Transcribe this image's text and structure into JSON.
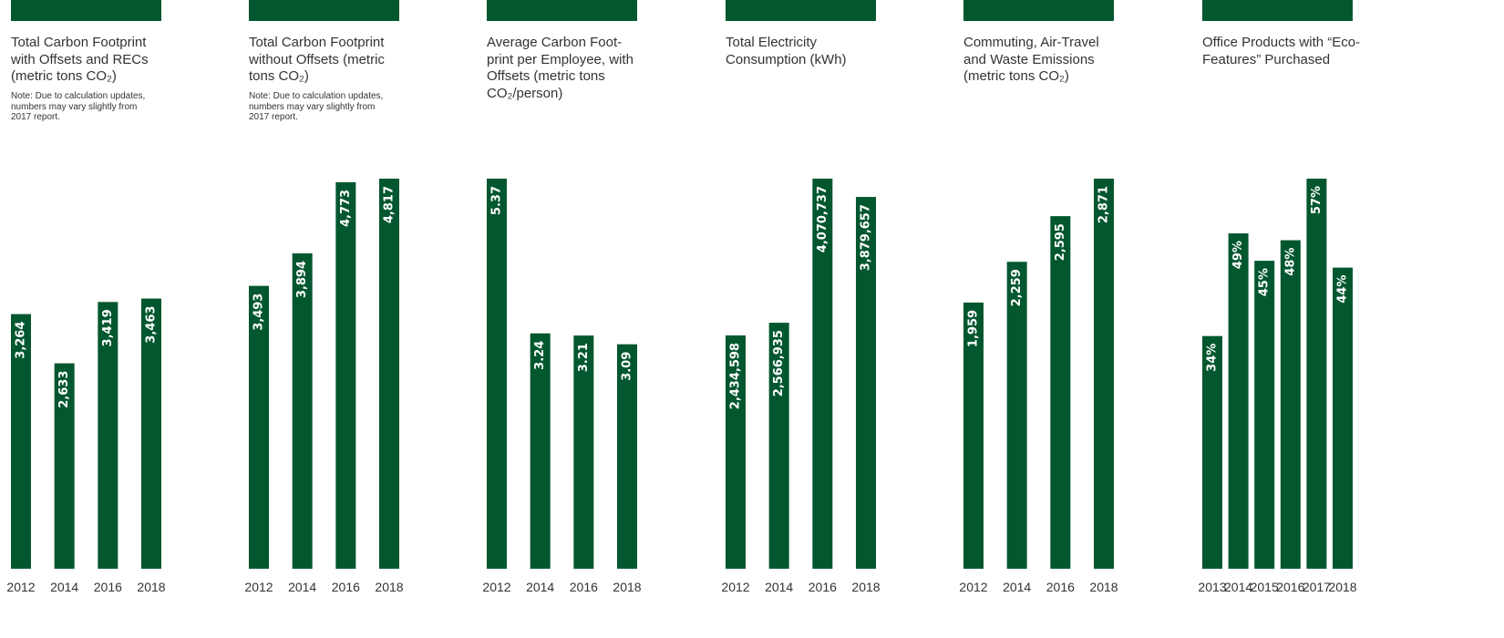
{
  "colors": {
    "bar": "#03572f",
    "label": "#ffffff",
    "text": "#333333"
  },
  "chart_data": [
    {
      "type": "bar",
      "title": "Total Carbon Footprint with Offsets and RECs (metric tons CO₂)",
      "note": "Note: Due to calculation updates, numbers may vary slightly from 2017 report.",
      "categories": [
        "2012",
        "2014",
        "2016",
        "2018"
      ],
      "values": [
        3264,
        2633,
        3419,
        3463
      ],
      "value_labels": [
        "3,264",
        "2,633",
        "3,419",
        "3,463"
      ],
      "ylim": [
        0,
        5000
      ]
    },
    {
      "type": "bar",
      "title": "Total Carbon Footprint without Offsets (metric tons CO₂)",
      "note": "Note: Due to calculation updates, numbers may vary slightly from 2017 report.",
      "categories": [
        "2012",
        "2014",
        "2016",
        "2018"
      ],
      "values": [
        3493,
        3894,
        4773,
        4817
      ],
      "value_labels": [
        "3,493",
        "3,894",
        "4,773",
        "4,817"
      ],
      "ylim": [
        0,
        4817
      ]
    },
    {
      "type": "bar",
      "title": "Average Carbon Foot-print per Employee, with Offsets (metric tons CO₂/person)",
      "note": "",
      "categories": [
        "2012",
        "2014",
        "2016",
        "2018"
      ],
      "values": [
        5.37,
        3.24,
        3.21,
        3.09
      ],
      "value_labels": [
        "5.37",
        "3.24",
        "3.21",
        "3.09"
      ],
      "ylim": [
        0,
        5.37
      ]
    },
    {
      "type": "bar",
      "title": "Total Electricity Consumption (kWh)",
      "note": "",
      "categories": [
        "2012",
        "2014",
        "2016",
        "2018"
      ],
      "values": [
        2434598,
        2566935,
        4070737,
        3879657
      ],
      "value_labels": [
        "2,434,598",
        "2,566,935",
        "4,070,737",
        "3,879,657"
      ],
      "ylim": [
        0,
        4070737
      ]
    },
    {
      "type": "bar",
      "title": "Commuting, Air-Travel and Waste Emissions (metric tons CO₂)",
      "note": "",
      "categories": [
        "2012",
        "2014",
        "2016",
        "2018"
      ],
      "values": [
        1959,
        2259,
        2595,
        2871
      ],
      "value_labels": [
        "1,959",
        "2,259",
        "2,595",
        "2,871"
      ],
      "ylim": [
        0,
        2871
      ]
    },
    {
      "type": "bar",
      "title": "Office Products with “Eco-Features” Purchased",
      "note": "",
      "categories": [
        "2013",
        "2014",
        "2015",
        "2016",
        "2017",
        "2018"
      ],
      "values": [
        34,
        49,
        45,
        48,
        57,
        44
      ],
      "value_labels": [
        "34%",
        "49%",
        "45%",
        "48%",
        "57%",
        "44%"
      ],
      "ylim": [
        0,
        57
      ]
    }
  ]
}
